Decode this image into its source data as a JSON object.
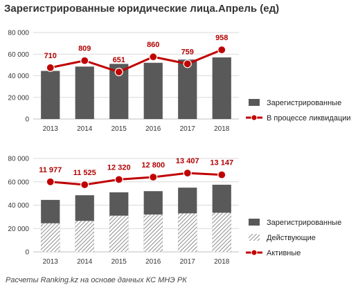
{
  "title": "Зарегистрированные юридические лица.Апрель (ед)",
  "source": "Расчеты Ranking.kz на основе данных КС МНЭ РК",
  "colors": {
    "bar_dark": "#595959",
    "line_red": "#c00000",
    "grid": "#d9d9d9",
    "hatch": "#8c8c8c"
  },
  "chart_data": [
    {
      "type": "bar+line",
      "categories": [
        "2013",
        "2014",
        "2015",
        "2016",
        "2017",
        "2018"
      ],
      "ylim": [
        0,
        80000
      ],
      "yticks": [
        "0",
        "20 000",
        "40 000",
        "60 000",
        "80 000"
      ],
      "ytick_values": [
        0,
        20000,
        40000,
        60000,
        80000
      ],
      "series": [
        {
          "name": "Зарегистрированные",
          "kind": "bar",
          "values": [
            44500,
            48500,
            51000,
            52000,
            55000,
            57000
          ]
        },
        {
          "name": "В процессе ликвидации",
          "kind": "line",
          "values": [
            710,
            809,
            651,
            860,
            759,
            958
          ],
          "labels": [
            "710",
            "809",
            "651",
            "860",
            "759",
            "958"
          ],
          "plot_positions": [
            47500,
            54000,
            43500,
            57500,
            51000,
            64000
          ]
        }
      ]
    },
    {
      "type": "bar+line",
      "categories": [
        "2013",
        "2014",
        "2015",
        "2016",
        "2017",
        "2018"
      ],
      "ylim": [
        0,
        80000
      ],
      "yticks": [
        "0",
        "20 000",
        "40 000",
        "60 000",
        "80 000"
      ],
      "ytick_values": [
        0,
        20000,
        40000,
        60000,
        80000
      ],
      "series": [
        {
          "name": "Зарегистрированные",
          "kind": "bar",
          "values": [
            44500,
            48500,
            51000,
            52000,
            55000,
            57500
          ]
        },
        {
          "name": "Действующие",
          "kind": "bar-hatched",
          "values": [
            24500,
            26500,
            31000,
            32000,
            33000,
            33500
          ]
        },
        {
          "name": "Активные",
          "kind": "line",
          "values": [
            11977,
            11525,
            12320,
            12800,
            13407,
            13147
          ],
          "labels": [
            "11 977",
            "11 525",
            "12 320",
            "12 800",
            "13 407",
            "13 147"
          ],
          "plot_positions": [
            60000,
            57500,
            62000,
            64000,
            67500,
            66000
          ]
        }
      ]
    }
  ]
}
